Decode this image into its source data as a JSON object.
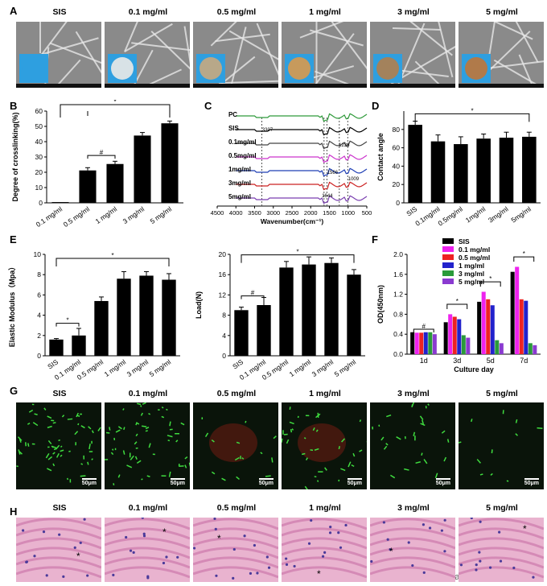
{
  "panels": {
    "A": "A",
    "B": "B",
    "C": "C",
    "D": "D",
    "E": "E",
    "F": "F",
    "G": "G",
    "H": "H"
  },
  "sample_labels": [
    "SIS",
    "0.1 mg/ml",
    "0.5 mg/ml",
    "1 mg/ml",
    "3 mg/ml",
    "5 mg/ml"
  ],
  "scale_bar": "50μm",
  "watermark": "BioactMater生物活性材料",
  "star": "*",
  "hash": "#",
  "chart_data": [
    {
      "id": "B",
      "type": "bar",
      "ylabel": "Degree of crosslinking(%)",
      "categories": [
        "0.1 mg/ml",
        "0.5 mg/ml",
        "1 mg/ml",
        "3 mg/ml",
        "5 mg/ml"
      ],
      "values": [
        0.5,
        21.2,
        25.4,
        44,
        52
      ],
      "errors": [
        0,
        1.8,
        1.8,
        2,
        1.5
      ],
      "ylim": [
        0,
        60
      ],
      "yticks": [
        0,
        10,
        20,
        30,
        40,
        50,
        60
      ]
    },
    {
      "id": "C",
      "type": "line",
      "xlabel": "Wavenumber(cm⁻¹)",
      "xlim": [
        4500,
        500
      ],
      "xticks": [
        4500,
        4000,
        3500,
        3000,
        2500,
        2000,
        1500,
        1000,
        500
      ],
      "series": [
        {
          "name": "PC",
          "color": "#2e9a3a"
        },
        {
          "name": "SIS",
          "color": "#000000"
        },
        {
          "name": "0.1mg/ml",
          "color": "#444444"
        },
        {
          "name": "0.5mg/ml",
          "color": "#cc33cc"
        },
        {
          "name": "1mg/ml",
          "color": "#1f3fb5"
        },
        {
          "name": "3mg/ml",
          "color": "#cc2222"
        },
        {
          "name": "5mg/ml",
          "color": "#7a3fb0"
        }
      ],
      "annotations": [
        "3307",
        "1236",
        "1644",
        "1566",
        "1009"
      ]
    },
    {
      "id": "D",
      "type": "bar",
      "ylabel": "Contact angle",
      "categories": [
        "SIS",
        "0.1mg/ml",
        "0.5mg/ml",
        "1mg/ml",
        "3mg/ml",
        "5mg/ml"
      ],
      "values": [
        85,
        67,
        64,
        70,
        71,
        72
      ],
      "errors": [
        4,
        7,
        8,
        5,
        6,
        5
      ],
      "ylim": [
        0,
        100
      ],
      "yticks": [
        0,
        20,
        40,
        60,
        80
      ]
    },
    {
      "id": "E1",
      "type": "bar",
      "ylabel": "Elastic Modulus（Mpa）",
      "categories": [
        "SIS",
        "0.1 mg/ml",
        "0.5 mg/ml",
        "1 mg/ml",
        "3 mg/ml",
        "5 mg/ml"
      ],
      "values": [
        1.6,
        2.0,
        5.4,
        7.6,
        7.9,
        7.5
      ],
      "errors": [
        0.1,
        0.7,
        0.4,
        0.7,
        0.4,
        0.6
      ],
      "ylim": [
        0,
        10
      ],
      "yticks": [
        0,
        2,
        4,
        6,
        8,
        10
      ]
    },
    {
      "id": "E2",
      "type": "bar",
      "ylabel": "Load(N)",
      "categories": [
        "SIS",
        "0.1 mg/ml",
        "0.5 mg/ml",
        "1 mg/ml",
        "3 mg/ml",
        "5 mg/ml"
      ],
      "values": [
        9,
        10,
        17.4,
        18,
        18.3,
        16
      ],
      "errors": [
        0.6,
        1.5,
        1.2,
        1.5,
        1,
        1
      ],
      "ylim": [
        0,
        20
      ],
      "yticks": [
        0,
        4,
        8,
        12,
        16,
        20
      ]
    },
    {
      "id": "F",
      "type": "bar",
      "ylabel": "OD(450nm)",
      "xlabel": "Culture day",
      "categories": [
        "1d",
        "3d",
        "5d",
        "7d"
      ],
      "series": [
        {
          "name": "SIS",
          "color": "#000000",
          "values": [
            0.44,
            0.64,
            1.05,
            1.65
          ]
        },
        {
          "name": "0.1 mg/ml",
          "color": "#ee22ee",
          "values": [
            0.43,
            0.8,
            1.25,
            1.75
          ]
        },
        {
          "name": "0.5 mg/ml",
          "color": "#ee2222",
          "values": [
            0.43,
            0.75,
            1.1,
            1.1
          ]
        },
        {
          "name": "1 mg/ml",
          "color": "#2222cc",
          "values": [
            0.44,
            0.7,
            0.98,
            1.07
          ]
        },
        {
          "name": "3 mg/ml",
          "color": "#2a9a3a",
          "values": [
            0.44,
            0.38,
            0.28,
            0.22
          ]
        },
        {
          "name": "5 mg/ml",
          "color": "#8a3ad0",
          "values": [
            0.4,
            0.33,
            0.22,
            0.18
          ]
        }
      ],
      "ylim": [
        0,
        2.0
      ],
      "yticks": [
        0,
        0.4,
        0.8,
        1.2,
        1.6,
        2.0
      ]
    }
  ]
}
